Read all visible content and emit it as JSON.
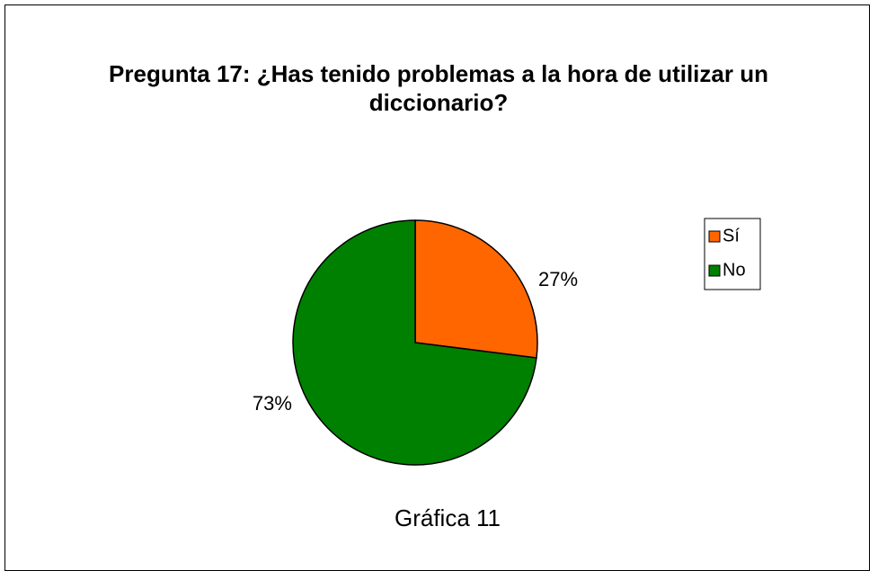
{
  "chart_data": {
    "type": "pie",
    "title": "Pregunta 17: ¿Has tenido problemas a la hora de utilizar un diccionario?",
    "caption": "Gráfica 11",
    "categories": [
      "Sí",
      "No"
    ],
    "values": [
      27,
      73
    ],
    "value_labels": [
      "27%",
      "73%"
    ],
    "colors": [
      "#ff6600",
      "#008000"
    ],
    "legend": "right"
  }
}
